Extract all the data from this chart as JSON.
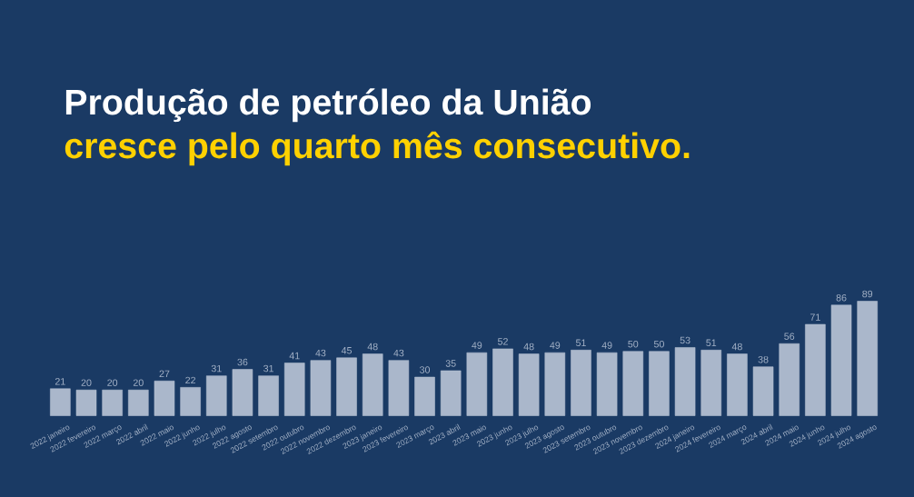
{
  "chart_data": {
    "type": "bar",
    "title": "Produção de petróleo da União",
    "subtitle": "cresce pelo quarto mês consecutivo.",
    "categories": [
      "2022 janeiro",
      "2022 fevereiro",
      "2022 março",
      "2022 abril",
      "2022 maio",
      "2022 junho",
      "2022 julho",
      "2022 agosto",
      "2022 setembro",
      "2022 outubro",
      "2022 novembro",
      "2022 dezembro",
      "2023 janeiro",
      "2023 fevereiro",
      "2023 março",
      "2023 abril",
      "2023 maio",
      "2023 junho",
      "2023 julho",
      "2023 agosto",
      "2023 setembro",
      "2023 outubro",
      "2023 novembro",
      "2023 dezembro",
      "2024 janeiro",
      "2024 fevereiro",
      "2024 março",
      "2024 abril",
      "2024 maio",
      "2024 junho",
      "2024 julho",
      "2024 agosto"
    ],
    "values": [
      21,
      20,
      20,
      20,
      27,
      22,
      31,
      36,
      31,
      41,
      43,
      45,
      48,
      43,
      30,
      35,
      49,
      52,
      48,
      49,
      51,
      49,
      50,
      50,
      53,
      51,
      48,
      38,
      56,
      71,
      86,
      89
    ],
    "color": "#aab7cb",
    "data_labels": true
  }
}
